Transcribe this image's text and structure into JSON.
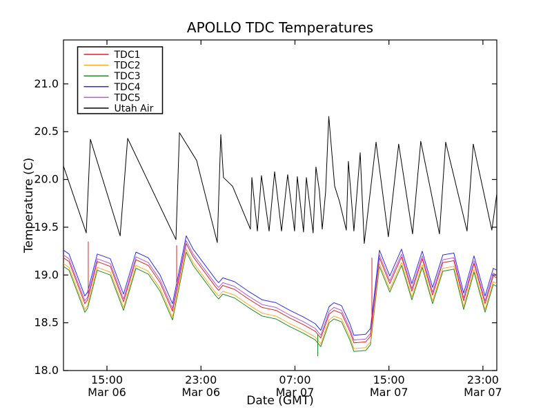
{
  "figure": {
    "title": "APOLLO TDC Temperatures",
    "xlabel": "Date (GMT)",
    "ylabel": "Temperature (C)"
  },
  "chart_data": {
    "type": "line",
    "title": "APOLLO TDC Temperatures",
    "xlabel": "Date (GMT)",
    "ylabel": "Temperature (C)",
    "x_unit": "hours since Mar 06 00:00 GMT",
    "xlim": [
      11.3,
      48.18
    ],
    "ylim": [
      18.0,
      21.46
    ],
    "grid": false,
    "legend": {
      "position": "upper left",
      "entries": [
        {
          "label": "TDC1",
          "color": "#e32222"
        },
        {
          "label": "TDC2",
          "color": "#ffaa22"
        },
        {
          "label": "TDC3",
          "color": "#228b22"
        },
        {
          "label": "TDC4",
          "color": "#2a2af0"
        },
        {
          "label": "TDC5",
          "color": "#ba55d3"
        },
        {
          "label": "Utah Air",
          "color": "#000000"
        }
      ]
    },
    "x_ticks": {
      "hours": [
        15,
        23,
        31,
        39,
        47
      ],
      "time_labels": [
        "15:00",
        "23:00",
        "07:00",
        "15:00",
        "23:00"
      ],
      "date_labels": [
        "Mar 06",
        "Mar 06",
        "Mar 07",
        "Mar 07",
        "Mar 07"
      ]
    },
    "y_ticks": {
      "values": [
        18.0,
        18.5,
        19.0,
        19.5,
        20.0,
        20.5,
        21.0
      ],
      "labels": [
        "18.0",
        "18.5",
        "19.0",
        "19.5",
        "20.0",
        "20.5",
        "21.0"
      ]
    },
    "tdc_x_hours": [
      11.3,
      11.77,
      13.12,
      13.35,
      14.18,
      15.29,
      16.41,
      17.47,
      18.52,
      19.52,
      20.58,
      21.75,
      22.34,
      24.28,
      24.51,
      24.86,
      25.86,
      27.04,
      28.21,
      29.39,
      30.56,
      31.73,
      32.73,
      33.2,
      33.91,
      34.32,
      34.96,
      35.67,
      36.02,
      37.02,
      37.43,
      38.19,
      39.07,
      40.07,
      40.95,
      41.83,
      42.71,
      43.59,
      44.53,
      45.36,
      46.24,
      47.18,
      47.88,
      48.18
    ],
    "series": [
      {
        "name": "TDC1",
        "color": "#e32222",
        "x_ref": "tdc_x_hours",
        "values": [
          19.18,
          19.14,
          18.7,
          18.74,
          19.14,
          19.09,
          18.72,
          19.16,
          19.1,
          18.92,
          18.62,
          19.33,
          19.19,
          18.87,
          18.84,
          18.89,
          18.85,
          18.75,
          18.66,
          18.63,
          18.55,
          18.48,
          18.41,
          18.34,
          18.59,
          18.63,
          18.6,
          18.41,
          18.29,
          18.3,
          18.36,
          19.18,
          18.91,
          19.19,
          18.83,
          19.17,
          18.79,
          19.13,
          19.15,
          18.73,
          19.12,
          18.7,
          18.99,
          18.97
        ]
      },
      {
        "name": "TDC2",
        "color": "#ffaa22",
        "x_ref": "tdc_x_hours",
        "values": [
          19.12,
          19.08,
          18.64,
          18.68,
          19.08,
          19.03,
          18.66,
          19.1,
          19.04,
          18.86,
          18.56,
          19.27,
          19.13,
          18.81,
          18.78,
          18.83,
          18.79,
          18.69,
          18.6,
          18.57,
          18.49,
          18.42,
          18.35,
          18.28,
          18.53,
          18.57,
          18.54,
          18.35,
          18.23,
          18.24,
          18.3,
          19.12,
          18.85,
          19.13,
          18.77,
          19.11,
          18.73,
          19.07,
          19.09,
          18.67,
          19.06,
          18.64,
          18.93,
          18.91
        ]
      },
      {
        "name": "TDC3",
        "color": "#228b22",
        "x_ref": "tdc_x_hours",
        "values": [
          19.09,
          19.05,
          18.61,
          18.65,
          19.05,
          19.0,
          18.63,
          19.07,
          19.01,
          18.83,
          18.53,
          19.24,
          19.1,
          18.78,
          18.75,
          18.8,
          18.76,
          18.66,
          18.57,
          18.54,
          18.46,
          18.39,
          18.32,
          18.25,
          18.5,
          18.54,
          18.51,
          18.32,
          18.2,
          18.21,
          18.27,
          19.09,
          18.82,
          19.1,
          18.74,
          19.08,
          18.7,
          19.04,
          19.06,
          18.64,
          19.03,
          18.61,
          18.9,
          18.88
        ]
      },
      {
        "name": "TDC4",
        "color": "#2a2af0",
        "x_ref": "tdc_x_hours",
        "values": [
          19.26,
          19.22,
          18.78,
          18.82,
          19.22,
          19.17,
          18.8,
          19.24,
          19.18,
          19.0,
          18.7,
          19.41,
          19.27,
          18.95,
          18.92,
          18.97,
          18.93,
          18.83,
          18.74,
          18.71,
          18.63,
          18.56,
          18.49,
          18.42,
          18.67,
          18.71,
          18.68,
          18.49,
          18.37,
          18.38,
          18.44,
          19.26,
          18.99,
          19.27,
          18.91,
          19.25,
          18.87,
          19.21,
          19.23,
          18.81,
          19.2,
          18.78,
          19.07,
          19.05
        ]
      },
      {
        "name": "TDC5",
        "color": "#ba55d3",
        "x_ref": "tdc_x_hours",
        "values": [
          19.21,
          19.17,
          18.73,
          18.77,
          19.17,
          19.12,
          18.75,
          19.19,
          19.13,
          18.95,
          18.65,
          19.36,
          19.22,
          18.9,
          18.87,
          18.92,
          18.88,
          18.78,
          18.69,
          18.66,
          18.58,
          18.51,
          18.44,
          18.37,
          18.62,
          18.66,
          18.63,
          18.44,
          18.32,
          18.33,
          18.39,
          19.21,
          18.94,
          19.22,
          18.86,
          19.2,
          18.82,
          19.16,
          19.18,
          18.76,
          19.15,
          18.73,
          19.02,
          19.0
        ]
      },
      {
        "name": "Utah Air",
        "color": "#000000",
        "x": [
          11.3,
          13.24,
          13.59,
          16.12,
          16.76,
          20.87,
          21.17,
          22.63,
          24.39,
          24.69,
          24.92,
          25.69,
          27.21,
          27.33,
          27.8,
          28.15,
          28.8,
          29.27,
          29.86,
          30.38,
          30.97,
          31.2,
          31.73,
          31.97,
          32.55,
          32.79,
          33.08,
          33.32,
          33.61,
          33.88,
          34.38,
          34.79,
          35.37,
          35.55,
          36.02,
          36.55,
          36.9,
          37.9,
          38.95,
          39.83,
          41.01,
          41.71,
          43.3,
          43.83,
          45.65,
          46.18,
          47.76,
          48.18
        ],
        "values": [
          20.14,
          19.44,
          20.42,
          19.41,
          20.43,
          19.37,
          20.49,
          20.2,
          19.34,
          20.47,
          20.02,
          19.93,
          19.48,
          20.02,
          19.46,
          20.04,
          19.46,
          20.08,
          19.46,
          20.05,
          19.46,
          20.03,
          19.45,
          20.02,
          19.44,
          20.13,
          19.88,
          19.48,
          19.87,
          20.66,
          19.93,
          19.77,
          19.47,
          20.19,
          19.46,
          20.28,
          19.33,
          20.39,
          19.4,
          20.37,
          19.43,
          20.4,
          19.43,
          20.39,
          19.46,
          20.37,
          19.47,
          19.85
        ]
      }
    ],
    "glitch_spikes": [
      {
        "series": "TDC1",
        "color": "#e32222",
        "x": 13.41,
        "from": 18.8,
        "to": 19.35
      },
      {
        "series": "TDC1",
        "color": "#e32222",
        "x": 20.93,
        "from": 18.9,
        "to": 19.31
      },
      {
        "series": "TDC1",
        "color": "#e32222",
        "x": 37.55,
        "from": 18.5,
        "to": 19.18
      },
      {
        "series": "TDC3",
        "color": "#228b22",
        "x": 32.94,
        "from": 18.38,
        "to": 18.15
      }
    ]
  }
}
